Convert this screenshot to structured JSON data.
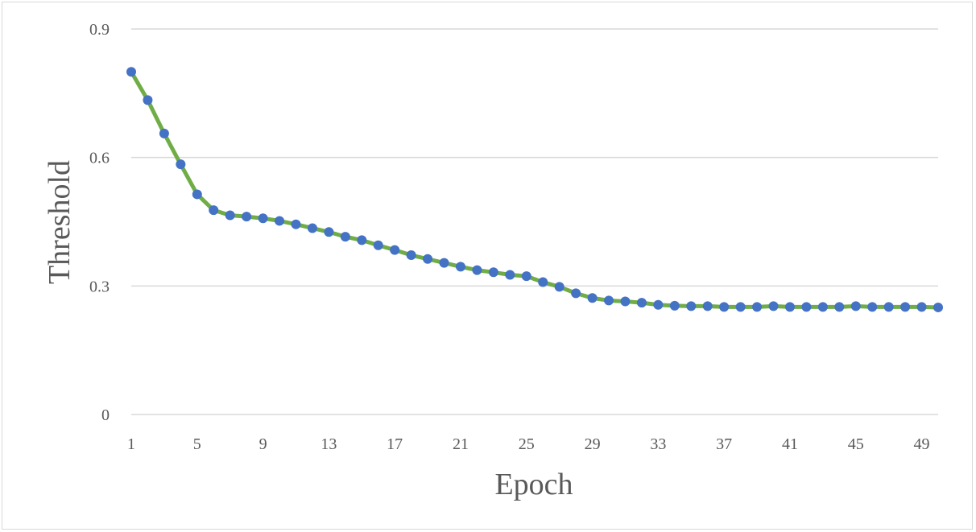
{
  "chart_data": {
    "type": "line",
    "title": "",
    "xlabel": "Epoch",
    "ylabel": "Threshold",
    "ylim": [
      0,
      0.9
    ],
    "yticks": [
      0,
      0.3,
      0.6,
      0.9
    ],
    "ytick_labels": [
      "0",
      "0.3",
      "0.6",
      "0.9"
    ],
    "xticks": [
      1,
      5,
      9,
      13,
      17,
      21,
      25,
      29,
      33,
      37,
      41,
      45,
      49
    ],
    "xtick_labels": [
      "1",
      "5",
      "9",
      "13",
      "17",
      "21",
      "25",
      "29",
      "33",
      "37",
      "41",
      "45",
      "49"
    ],
    "x_range": [
      1,
      50
    ],
    "grid": "horizontal",
    "line_color": "#70ad47",
    "marker_color": "#4472c4",
    "series": [
      {
        "x": [
          1,
          2,
          3,
          4,
          5,
          6,
          7,
          8,
          9,
          10,
          11,
          12,
          13,
          14,
          15,
          16,
          17,
          18,
          19,
          20,
          21,
          22,
          23,
          24,
          25,
          26,
          27,
          28,
          29,
          30,
          31,
          32,
          33,
          34,
          35,
          36,
          37,
          38,
          39,
          40,
          41,
          42,
          43,
          44,
          45,
          46,
          47,
          48,
          49,
          50
        ],
        "values": [
          0.8,
          0.734,
          0.656,
          0.584,
          0.514,
          0.477,
          0.465,
          0.462,
          0.458,
          0.452,
          0.444,
          0.435,
          0.426,
          0.415,
          0.407,
          0.395,
          0.384,
          0.372,
          0.363,
          0.354,
          0.345,
          0.337,
          0.332,
          0.326,
          0.323,
          0.309,
          0.298,
          0.283,
          0.272,
          0.266,
          0.264,
          0.261,
          0.256,
          0.254,
          0.253,
          0.253,
          0.251,
          0.251,
          0.251,
          0.253,
          0.251,
          0.251,
          0.251,
          0.251,
          0.253,
          0.251,
          0.251,
          0.251,
          0.251,
          0.25
        ]
      }
    ]
  }
}
